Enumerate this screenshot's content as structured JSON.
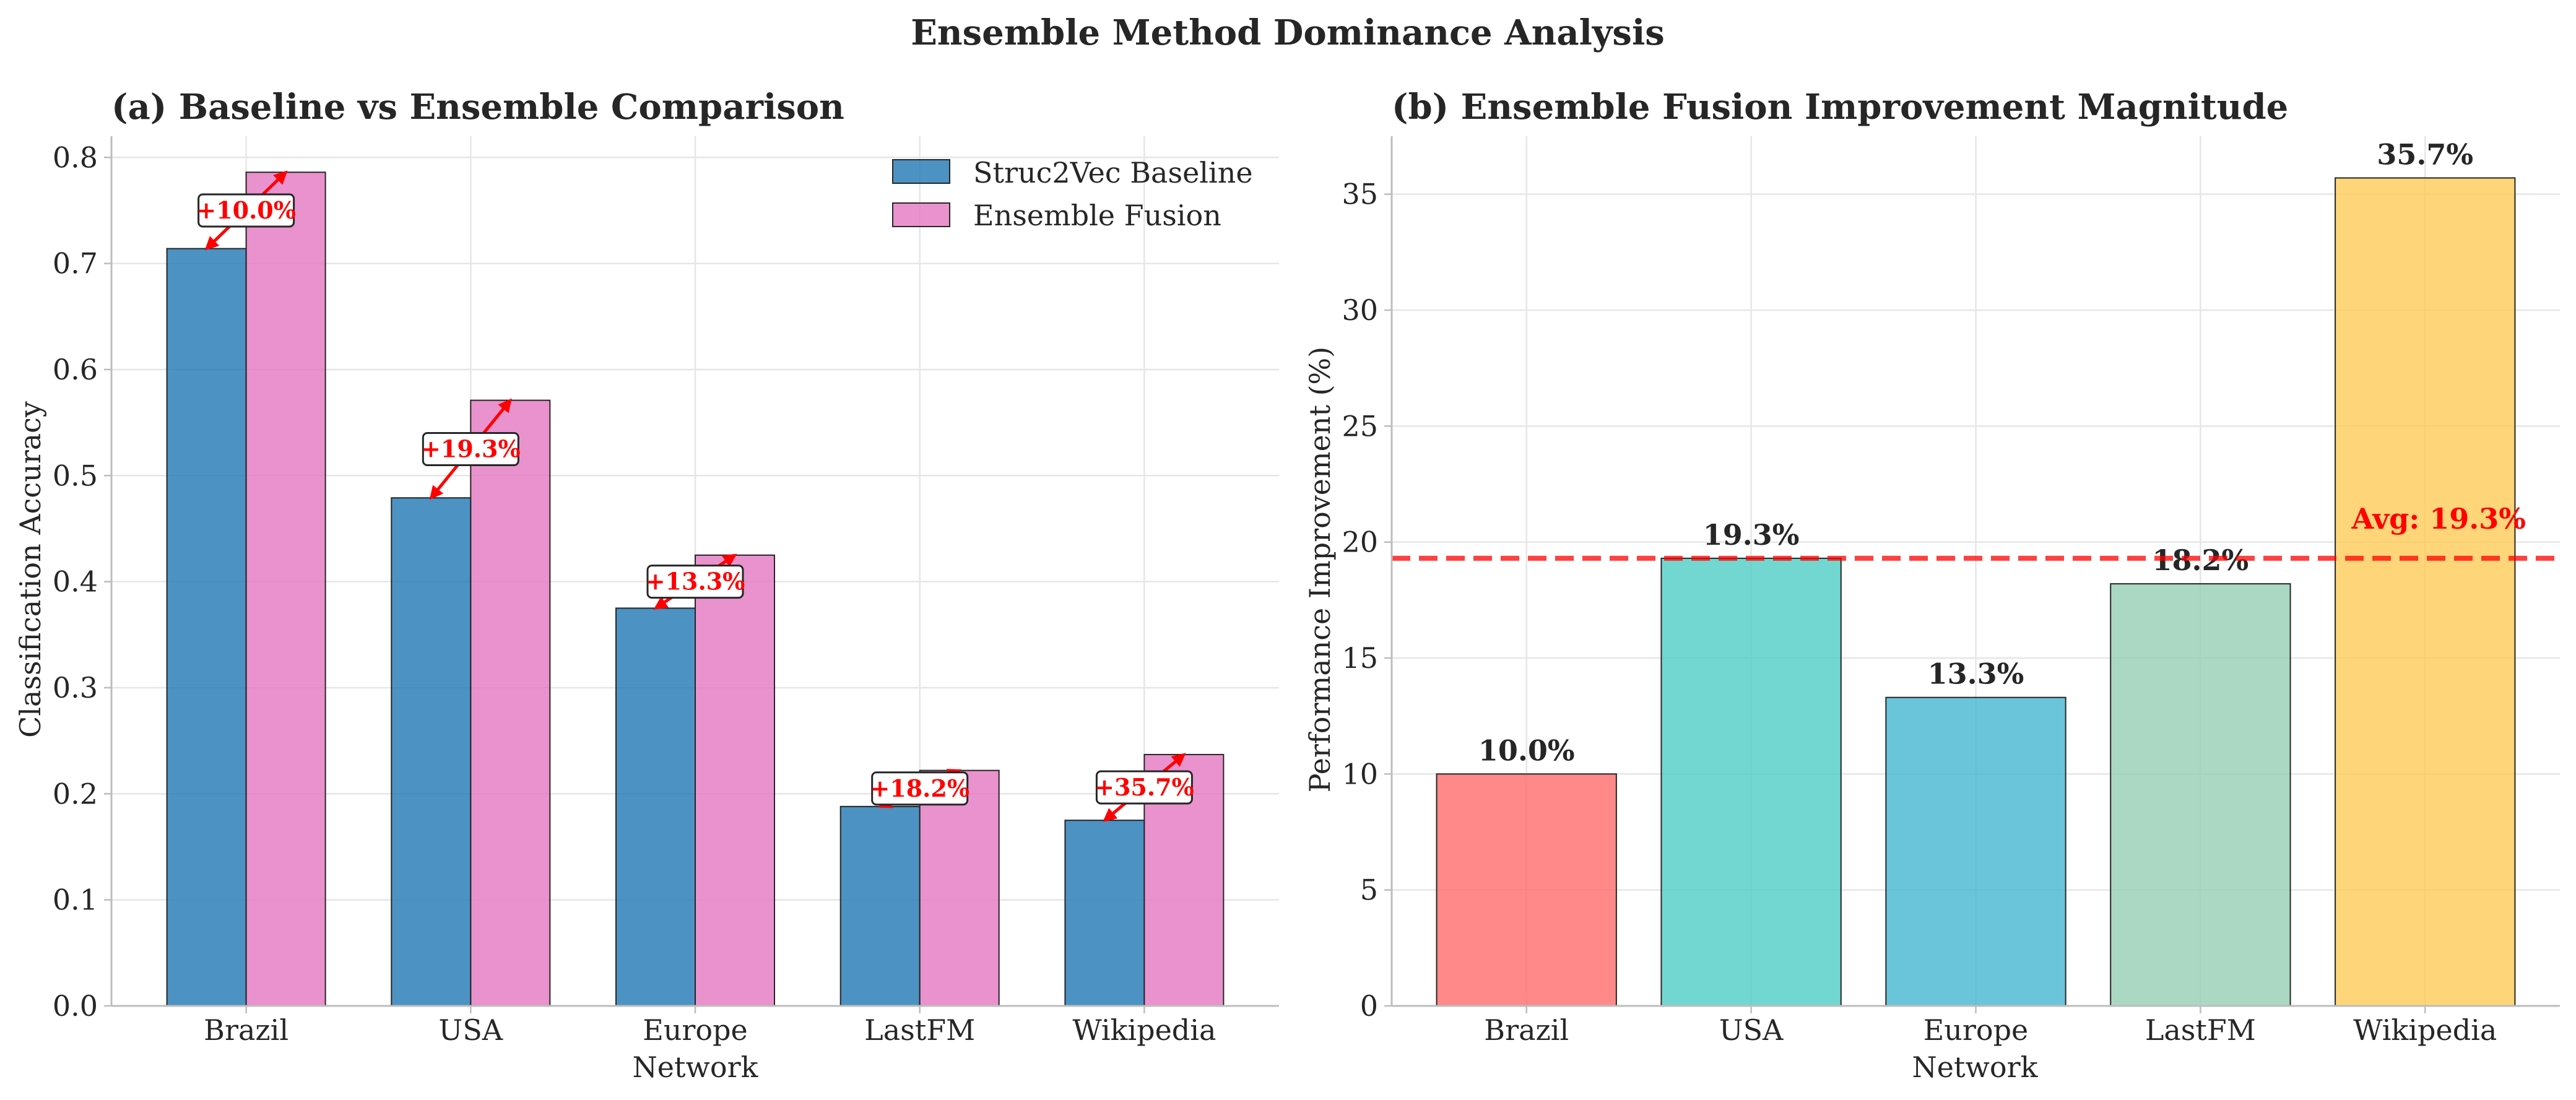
{
  "figure": {
    "suptitle": "Ensemble Method Dominance Analysis"
  },
  "chart_data": [
    {
      "type": "bar",
      "title": "(a) Baseline vs Ensemble Comparison",
      "xlabel": "Network",
      "ylabel": "Classification Accuracy",
      "categories": [
        "Brazil",
        "USA",
        "Europe",
        "LastFM",
        "Wikipedia"
      ],
      "ylim": [
        0,
        0.82
      ],
      "yticks": [
        0.0,
        0.1,
        0.2,
        0.3,
        0.4,
        0.5,
        0.6,
        0.7,
        0.8
      ],
      "ytick_labels": [
        "0.0",
        "0.1",
        "0.2",
        "0.3",
        "0.4",
        "0.5",
        "0.6",
        "0.7",
        "0.8"
      ],
      "grid": true,
      "legend": "top-right",
      "series": [
        {
          "name": "Struc2Vec Baseline",
          "color": "#1f77b4",
          "values": [
            0.714,
            0.479,
            0.375,
            0.188,
            0.175
          ]
        },
        {
          "name": "Ensemble Fusion",
          "color": "#e377c2",
          "values": [
            0.786,
            0.571,
            0.425,
            0.222,
            0.237
          ]
        }
      ],
      "annotations": [
        "+10.0%",
        "+19.3%",
        "+13.3%",
        "+18.2%",
        "+35.7%"
      ],
      "annotation_color": "#ff0000"
    },
    {
      "type": "bar",
      "title": "(b) Ensemble Fusion Improvement Magnitude",
      "xlabel": "Network",
      "ylabel": "Performance Improvement (%)",
      "categories": [
        "Brazil",
        "USA",
        "Europe",
        "LastFM",
        "Wikipedia"
      ],
      "values": [
        10.0,
        19.3,
        13.3,
        18.2,
        35.7
      ],
      "value_labels": [
        "10.0%",
        "19.3%",
        "13.3%",
        "18.2%",
        "35.7%"
      ],
      "colors": [
        "#ff6b6b",
        "#4ecdc4",
        "#45b7d1",
        "#96ceb4",
        "#feca57"
      ],
      "ylim": [
        0,
        37.5
      ],
      "yticks": [
        0,
        5,
        10,
        15,
        20,
        25,
        30,
        35
      ],
      "ytick_labels": [
        "0",
        "5",
        "10",
        "15",
        "20",
        "25",
        "30",
        "35"
      ],
      "grid": true,
      "average": {
        "value": 19.3,
        "label": "Avg: 19.3%",
        "color": "#ff0000"
      }
    }
  ]
}
